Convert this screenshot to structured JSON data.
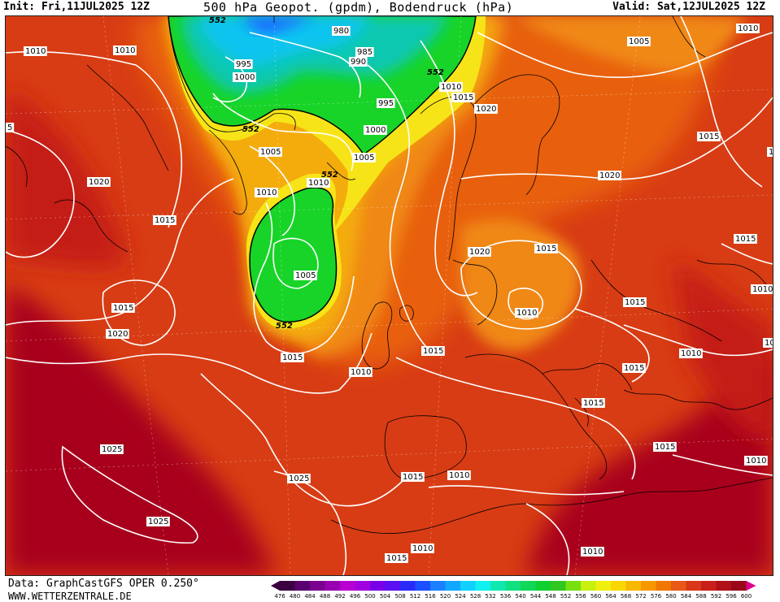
{
  "header": {
    "init": "Init: Fri,11JUL2025 12Z",
    "title": "500 hPa Geopot. (gpdm), Bodendruck (hPa)",
    "valid": "Valid: Sat,12JUL2025 12Z"
  },
  "footer": {
    "data_source": "Data: GraphCastGFS OPER 0.250°",
    "website": "WWW.WETTERZENTRALE.DE"
  },
  "color_scale": {
    "labels": [
      "476",
      "480",
      "484",
      "488",
      "492",
      "496",
      "500",
      "504",
      "508",
      "512",
      "516",
      "520",
      "524",
      "528",
      "532",
      "536",
      "540",
      "544",
      "548",
      "552",
      "556",
      "560",
      "564",
      "568",
      "572",
      "576",
      "580",
      "584",
      "588",
      "592",
      "596",
      "600"
    ],
    "colors": [
      "#3a0040",
      "#5a0070",
      "#7a0090",
      "#9800b0",
      "#b800d0",
      "#a000e0",
      "#7a00e8",
      "#5a10f0",
      "#2a2af8",
      "#1a50ff",
      "#1a80ff",
      "#10a8ff",
      "#10d0ff",
      "#10f0f0",
      "#10e8b0",
      "#10e080",
      "#10d858",
      "#10d030",
      "#30c820",
      "#78e010",
      "#c8f010",
      "#f0f010",
      "#f8d800",
      "#f8b800",
      "#f89800",
      "#f07800",
      "#e85818",
      "#d83818",
      "#c82018",
      "#b01018",
      "#980818",
      "#e00090"
    ]
  },
  "map": {
    "colors": {
      "deep_red": "#a8001a",
      "red": "#c41e16",
      "red_orange": "#d83c14",
      "orange": "#e8600e",
      "light_orange": "#f08818",
      "gold": "#f4ac10",
      "yellow": "#f6e418",
      "yellow_green": "#c8f010",
      "green": "#18d428",
      "teal": "#10c8b0",
      "cyan": "#10c4f0",
      "blue": "#1a6cff"
    },
    "geopot_labels": [
      "552",
      "552",
      "552",
      "552",
      "552"
    ],
    "pressure_labels": [
      "980",
      "985",
      "990",
      "995",
      "1000",
      "995",
      "1000",
      "1005",
      "1005",
      "1005",
      "1010",
      "1010",
      "1010",
      "1010",
      "1010",
      "1010",
      "1010",
      "1010",
      "1010",
      "1010",
      "1010",
      "1010",
      "1010",
      "1010",
      "1010",
      "1015",
      "1015",
      "1015",
      "1015",
      "1015",
      "1015",
      "1015",
      "1015",
      "1015",
      "1015",
      "1015",
      "1015",
      "1015",
      "1015",
      "1020",
      "1020",
      "1020",
      "1020",
      "1020",
      "1025",
      "1025",
      "1025",
      "1005",
      "5",
      "1",
      "100"
    ]
  }
}
